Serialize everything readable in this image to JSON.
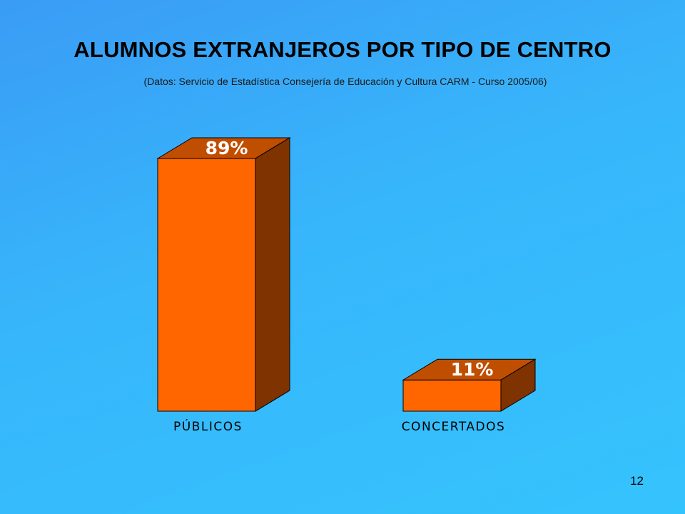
{
  "slide": {
    "title": "ALUMNOS EXTRANJEROS POR TIPO DE CENTRO",
    "subtitle": "(Datos: Servicio de Estadística Consejería de Educación y Cultura CARM - Curso 2005/06)",
    "page_number": "12"
  },
  "chart_data": {
    "type": "bar",
    "style": "3d",
    "categories": [
      "PÚBLICOS",
      "CONCERTADOS"
    ],
    "values": [
      89,
      11
    ],
    "value_labels": [
      "89%",
      "11%"
    ],
    "unit": "%",
    "ylim": [
      0,
      100
    ],
    "grid": false,
    "legend": "none",
    "colors": {
      "front": "#FF6600",
      "top": "#C04E00",
      "side": "#7F3300",
      "outline": "#000000",
      "value_label": "#FFFFFF",
      "category_label": "#000000"
    }
  }
}
